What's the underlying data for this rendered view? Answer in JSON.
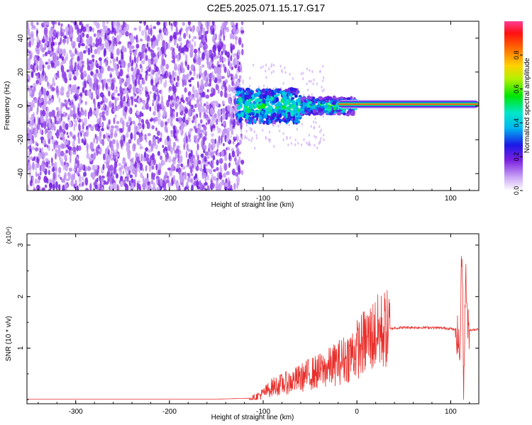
{
  "title": "C2E5.2025.071.15.17.G17",
  "chart_data": [
    {
      "type": "heatmap",
      "xlabel": "Height of straight line (km)",
      "ylabel": "Frequency (Hz)",
      "xlim": [
        -352,
        130
      ],
      "ylim": [
        -50,
        50
      ],
      "x_ticks": [
        "-300",
        "-200",
        "-100",
        "0",
        "100"
      ],
      "y_ticks": [
        "-40",
        "-20",
        "0",
        "20",
        "40"
      ],
      "colorbar": {
        "label": "Normalized spectral amplitude",
        "range": [
          0.0,
          1.0
        ],
        "ticks": [
          "0.0",
          "0.2",
          "0.4",
          "0.6",
          "0.8"
        ]
      },
      "regions": [
        {
          "x_range": [
            -352,
            -128
          ],
          "frequency_range": [
            -50,
            50
          ],
          "amplitude": 0.05
        },
        {
          "x_range": [
            -128,
            -60
          ],
          "frequency_range": [
            -10,
            10
          ],
          "amplitude": 0.35
        },
        {
          "x_range": [
            -60,
            0
          ],
          "frequency_range": [
            -5,
            5
          ],
          "amplitude": 0.5
        },
        {
          "x_range": [
            -20,
            130
          ],
          "frequency_range": [
            0,
            2
          ],
          "amplitude": 0.95
        }
      ]
    },
    {
      "type": "line",
      "xlabel": "Height of straight line (km)",
      "ylabel": "SNR (10 * v/v)",
      "y_multiplier": "(x10⁴)",
      "xlim": [
        -352,
        130
      ],
      "ylim": [
        -0.08,
        3.22
      ],
      "x_ticks": [
        "-300",
        "-200",
        "-100",
        "0",
        "100"
      ],
      "y_ticks": [
        "1",
        "2",
        "3"
      ],
      "series": [
        {
          "color": "#e8302c",
          "x": [
            -352,
            -150,
            -110,
            -100,
            -90,
            -80,
            -70,
            -60,
            -50,
            -40,
            -30,
            -20,
            -10,
            0,
            10,
            20,
            30,
            40,
            50,
            60,
            70,
            80,
            90,
            100,
            105,
            108,
            110,
            112,
            114,
            116,
            118,
            120,
            130
          ],
          "y": [
            0.01,
            0.01,
            0.03,
            0.12,
            0.25,
            0.3,
            0.35,
            0.42,
            0.5,
            0.55,
            0.62,
            0.72,
            0.82,
            0.98,
            1.15,
            1.28,
            1.36,
            1.39,
            1.4,
            1.4,
            1.4,
            1.4,
            1.39,
            1.38,
            1.35,
            1.2,
            0.8,
            3.2,
            0.1,
            2.6,
            1.4,
            1.35,
            1.37
          ]
        }
      ]
    }
  ]
}
